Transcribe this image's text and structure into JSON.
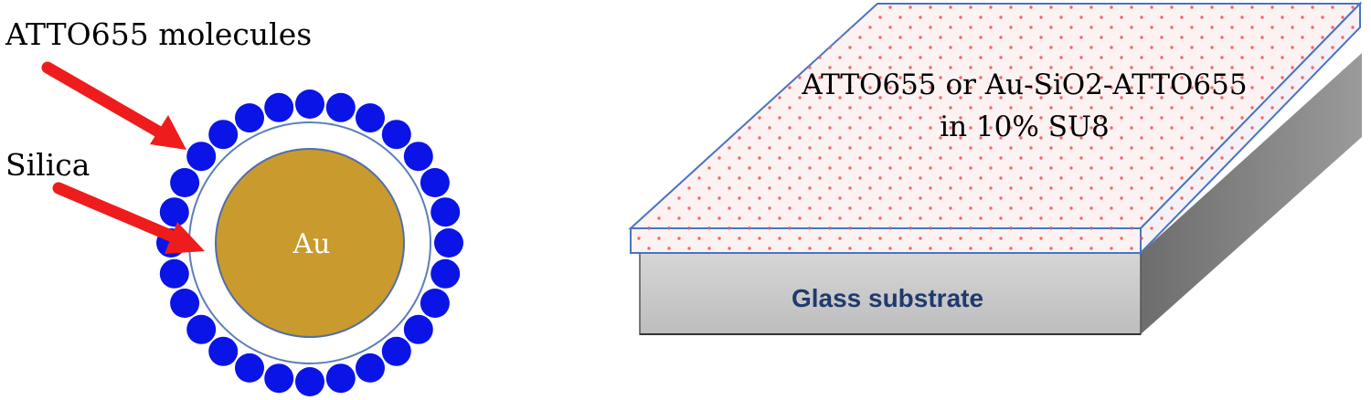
{
  "labels": {
    "molecules": "ATTO655 molecules",
    "silica": "Silica",
    "core": "Au",
    "film_line1": "ATTO655 or Au-SiO2-ATTO655",
    "film_line2": "in 10% SU8",
    "substrate": "Glass substrate"
  },
  "colors": {
    "arrow": "#ee1c1c",
    "molecule": "#0a14e6",
    "gold_core": "#c99a2e",
    "gold_edge": "#4f6fa8",
    "silica_edge": "#5b7fb8",
    "film_edge": "#4a74c0",
    "film_dot": "#f06a6a",
    "substrate_front": "#c8c8c8",
    "substrate_side": "#7c7c7c",
    "substrate_text": "#1f3a6e"
  },
  "nanoparticle": {
    "molecule_count": 28
  }
}
